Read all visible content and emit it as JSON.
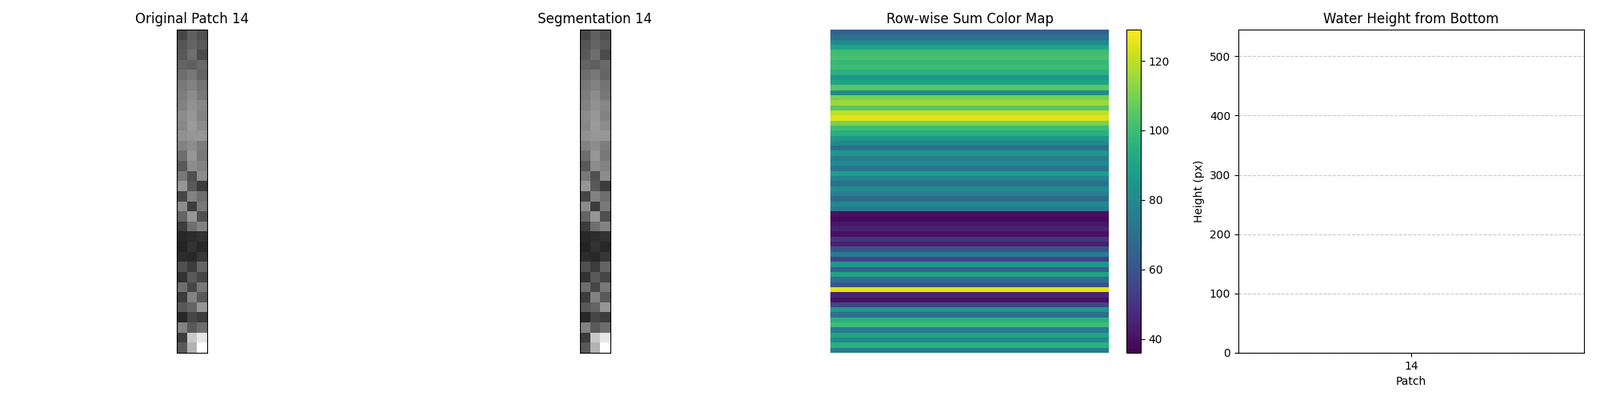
{
  "chart_data": [
    {
      "type": "image",
      "title": "Original Patch 14",
      "color": "gray",
      "clim": [
        0,
        255
      ],
      "tick_labels": false,
      "pixels": [
        [
          70,
          95,
          80
        ],
        [
          85,
          100,
          90
        ],
        [
          90,
          110,
          75
        ],
        [
          100,
          95,
          105
        ],
        [
          110,
          120,
          100
        ],
        [
          120,
          130,
          115
        ],
        [
          125,
          140,
          120
        ],
        [
          130,
          145,
          135
        ],
        [
          140,
          150,
          130
        ],
        [
          135,
          155,
          140
        ],
        [
          145,
          150,
          150
        ],
        [
          130,
          140,
          125
        ],
        [
          110,
          150,
          120
        ],
        [
          90,
          140,
          130
        ],
        [
          120,
          80,
          140
        ],
        [
          150,
          90,
          60
        ],
        [
          70,
          130,
          110
        ],
        [
          140,
          60,
          120
        ],
        [
          100,
          150,
          80
        ],
        [
          60,
          110,
          130
        ],
        [
          40,
          45,
          50
        ],
        [
          35,
          50,
          40
        ],
        [
          45,
          40,
          55
        ],
        [
          80,
          60,
          100
        ],
        [
          50,
          90,
          70
        ],
        [
          110,
          70,
          120
        ],
        [
          60,
          130,
          90
        ],
        [
          90,
          100,
          150
        ],
        [
          40,
          70,
          60
        ],
        [
          130,
          90,
          110
        ],
        [
          60,
          200,
          230
        ],
        [
          90,
          180,
          255
        ]
      ]
    },
    {
      "type": "image",
      "title": "Segmentation 14",
      "color": "gray",
      "clim": [
        0,
        255
      ],
      "tick_labels": false,
      "pixels": [
        [
          70,
          95,
          80
        ],
        [
          85,
          100,
          90
        ],
        [
          90,
          110,
          75
        ],
        [
          100,
          95,
          105
        ],
        [
          110,
          120,
          100
        ],
        [
          120,
          130,
          115
        ],
        [
          125,
          140,
          120
        ],
        [
          130,
          145,
          135
        ],
        [
          140,
          150,
          130
        ],
        [
          135,
          155,
          140
        ],
        [
          145,
          150,
          150
        ],
        [
          130,
          140,
          125
        ],
        [
          110,
          150,
          120
        ],
        [
          90,
          140,
          130
        ],
        [
          120,
          80,
          140
        ],
        [
          150,
          90,
          60
        ],
        [
          70,
          130,
          110
        ],
        [
          140,
          60,
          120
        ],
        [
          100,
          150,
          80
        ],
        [
          60,
          110,
          130
        ],
        [
          40,
          45,
          50
        ],
        [
          35,
          50,
          40
        ],
        [
          45,
          40,
          55
        ],
        [
          80,
          60,
          100
        ],
        [
          50,
          90,
          70
        ],
        [
          110,
          70,
          120
        ],
        [
          60,
          130,
          90
        ],
        [
          90,
          100,
          150
        ],
        [
          40,
          70,
          60
        ],
        [
          130,
          90,
          110
        ],
        [
          60,
          200,
          230
        ],
        [
          90,
          180,
          255
        ]
      ]
    },
    {
      "type": "heatmap",
      "title": "Row-wise Sum Color Map",
      "color": "viridis",
      "tick_labels": false,
      "clim": [
        36,
        129
      ],
      "cticks": [
        40,
        60,
        80,
        100,
        120
      ],
      "cells": [
        65,
        70,
        80,
        90,
        100,
        102,
        98,
        100,
        95,
        85,
        90,
        105,
        80,
        110,
        115,
        105,
        120,
        125,
        110,
        100,
        95,
        85,
        80,
        70,
        85,
        75,
        80,
        72,
        88,
        78,
        70,
        82,
        76,
        68,
        80,
        74,
        40,
        38,
        42,
        45,
        40,
        50,
        44,
        60,
        75,
        55,
        85,
        65,
        90,
        70,
        60,
        125,
        45,
        40,
        55,
        85,
        70,
        95,
        100,
        75,
        90,
        80,
        95,
        75
      ]
    },
    {
      "type": "bar",
      "title": "Water Height from Bottom",
      "x_label": "Patch",
      "y_label": "Height (px)",
      "categories": [
        "14"
      ],
      "values": [
        null
      ],
      "ylim": [
        0,
        545
      ],
      "yticks": [
        0,
        100,
        200,
        300,
        400,
        500
      ],
      "grid": true
    }
  ]
}
